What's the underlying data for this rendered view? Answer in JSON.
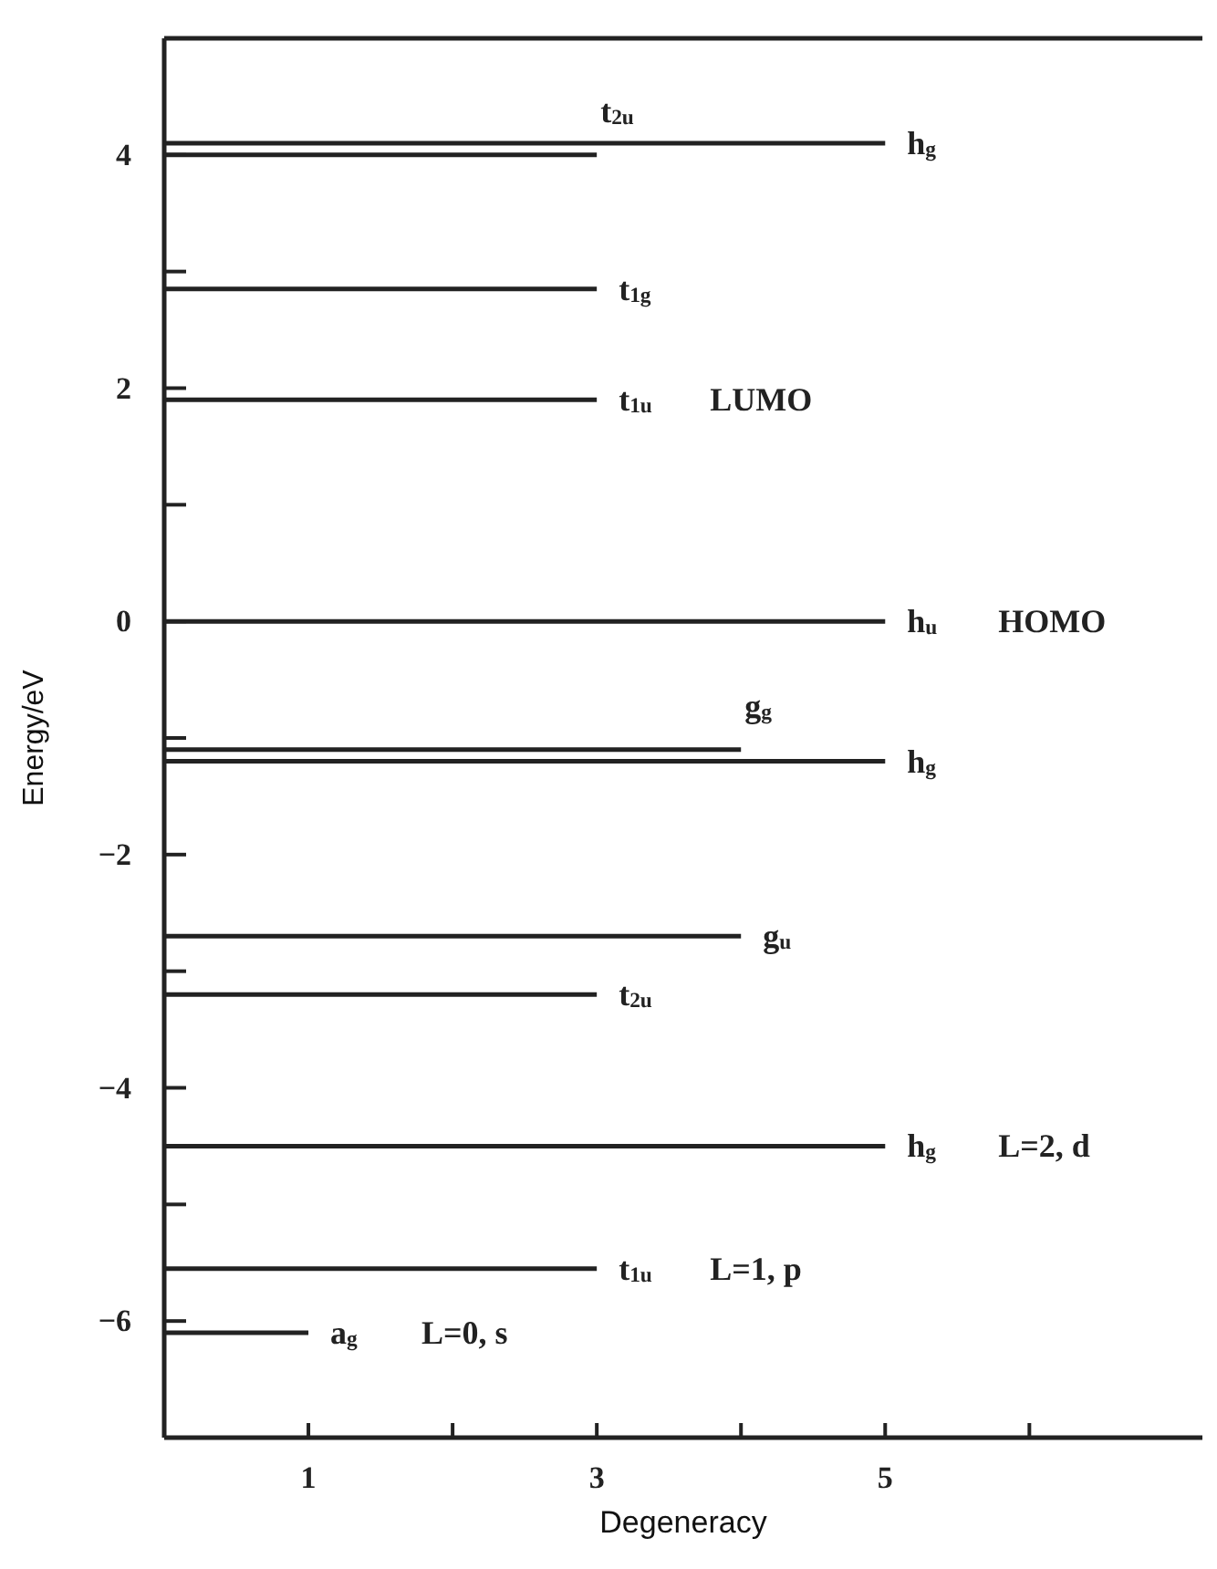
{
  "chart_data": {
    "type": "line",
    "xlabel": "Degeneracy",
    "ylabel": "Energy/eV",
    "xlim": [
      0,
      7.2
    ],
    "ylim": [
      -7,
      5
    ],
    "xticks": [
      1,
      {
        "value": 2,
        "label": null
      },
      3,
      {
        "value": 4,
        "label": null
      },
      5,
      {
        "value": 6,
        "label": null
      }
    ],
    "yticks": [
      -6,
      {
        "value": -5,
        "label": null
      },
      -4,
      {
        "value": -3,
        "label": null
      },
      -2,
      {
        "value": -1,
        "label": null
      },
      0,
      {
        "value": 1,
        "label": null
      },
      2,
      {
        "value": 3,
        "label": null
      },
      4
    ],
    "marker": "none",
    "line_style": "solid",
    "grid": false,
    "legend": false,
    "series": [
      {
        "name": "h$_{g}$",
        "color": "#222222",
        "x": [
          0,
          5
        ],
        "values": [
          4.1,
          4.1
        ]
      },
      {
        "name": "t$_{2u}$",
        "color": "#222222",
        "x": [
          0,
          3
        ],
        "values": [
          4.0,
          4.0
        ]
      },
      {
        "name": "t$_{1g}$",
        "color": "#222222",
        "x": [
          0,
          3
        ],
        "values": [
          2.85,
          2.85
        ]
      },
      {
        "name": "t$_{1u}$ LUMO",
        "color": "#222222",
        "x": [
          0,
          3
        ],
        "values": [
          1.9,
          1.9
        ]
      },
      {
        "name": "h$_{u}$ HOMO",
        "color": "#222222",
        "x": [
          0,
          5
        ],
        "values": [
          0,
          0
        ]
      },
      {
        "name": "g$_{g}$",
        "color": "#222222",
        "x": [
          0,
          4
        ],
        "values": [
          -1.1,
          -1.1
        ]
      },
      {
        "name": "h$_{g}$",
        "color": "#222222",
        "x": [
          0,
          5
        ],
        "values": [
          -1.2,
          -1.2
        ]
      },
      {
        "name": "g$_{u}$",
        "color": "#222222",
        "x": [
          0,
          4
        ],
        "values": [
          -2.7,
          -2.7
        ]
      },
      {
        "name": "t$_{2u}$",
        "color": "#222222",
        "x": [
          0,
          3
        ],
        "values": [
          -3.2,
          -3.2
        ]
      },
      {
        "name": "h$_{g}$ L=2, d",
        "color": "#222222",
        "x": [
          0,
          5
        ],
        "values": [
          -4.5,
          -4.5
        ]
      },
      {
        "name": "t$_{1u}$ L=1, p",
        "color": "#222222",
        "x": [
          0,
          3
        ],
        "values": [
          -5.55,
          -5.55
        ]
      },
      {
        "name": "a$_{g}$ L=0, s",
        "color": "#222222",
        "x": [
          0,
          1
        ],
        "values": [
          -6.1,
          -6.1
        ]
      }
    ]
  }
}
